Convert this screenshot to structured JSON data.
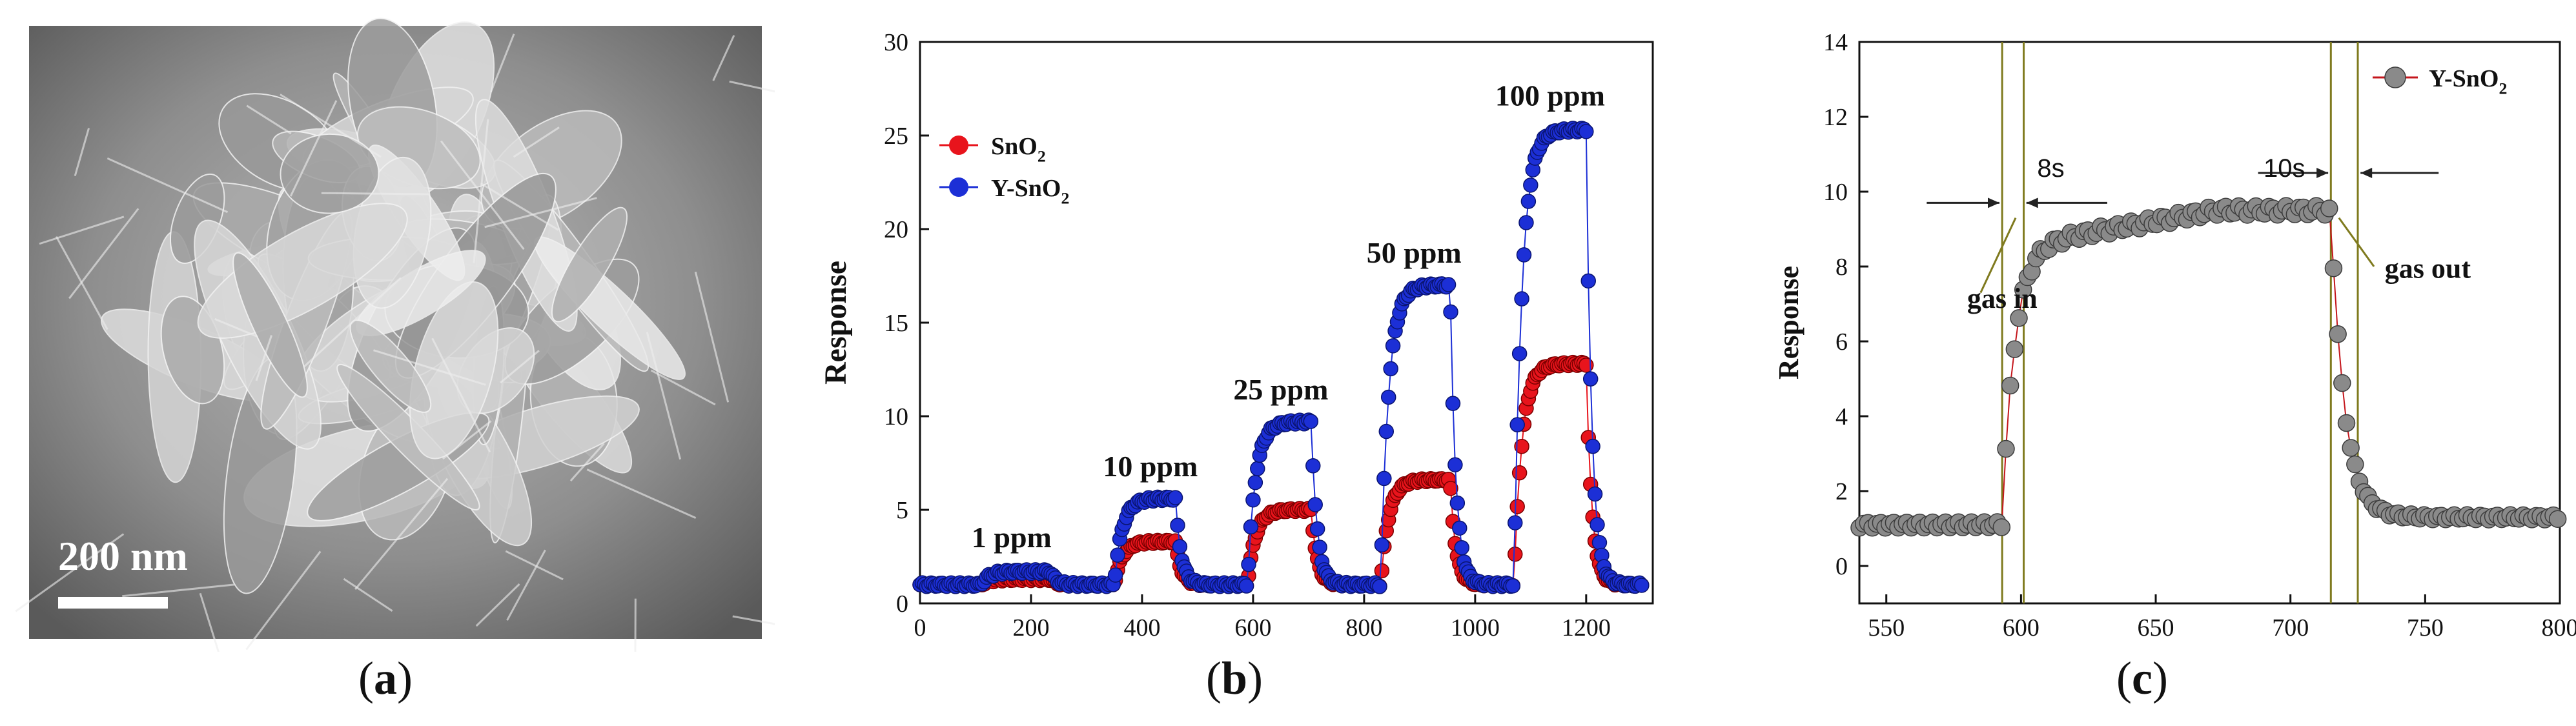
{
  "panel_a": {
    "scale_bar_label": "200 nm",
    "caption_open": "(",
    "caption_letter": "a",
    "caption_close": ")"
  },
  "panel_b": {
    "caption_open": "(",
    "caption_letter": "b",
    "caption_close": ")"
  },
  "panel_c": {
    "caption_open": "(",
    "caption_letter": "c",
    "caption_close": ")"
  },
  "colors": {
    "sno2": "#e8141c",
    "ysno2": "#1c2fd6",
    "ysno2_c": "#8a8a8a",
    "guide_line": "#7f7a1e",
    "axis": "#111111"
  },
  "chart_data": [
    {
      "id": "b",
      "type": "scatter",
      "title": "",
      "xlabel": "",
      "ylabel": "Response",
      "xlim": [
        0,
        1320
      ],
      "ylim": [
        0,
        30
      ],
      "xticks": [
        "0",
        "200",
        "400",
        "600",
        "800",
        "1000",
        "1200"
      ],
      "xtick_values": [
        0,
        200,
        400,
        600,
        800,
        1000,
        1200
      ],
      "yticks": [
        "0",
        "5",
        "10",
        "15",
        "20",
        "25",
        "30"
      ],
      "ytick_values": [
        0,
        5,
        10,
        15,
        20,
        25,
        30
      ],
      "legend": {
        "position": "top-left",
        "entries": [
          {
            "base": "SnO",
            "sub": "2"
          },
          {
            "base": "Y-SnO",
            "sub": "2"
          }
        ]
      },
      "pulse_labels": [
        {
          "text": "1 ppm",
          "x": 165,
          "y": 3.0
        },
        {
          "text": "10 ppm",
          "x": 415,
          "y": 6.8
        },
        {
          "text": "25 ppm",
          "x": 650,
          "y": 10.9
        },
        {
          "text": "50 ppm",
          "x": 890,
          "y": 18.2
        },
        {
          "text": "100 ppm",
          "x": 1135,
          "y": 26.6
        }
      ],
      "pulses": [
        {
          "start": 110,
          "end": 235,
          "sno2": 1.3,
          "ysno2": 1.7
        },
        {
          "start": 350,
          "end": 460,
          "sno2": 3.3,
          "ysno2": 5.6
        },
        {
          "start": 590,
          "end": 705,
          "sno2": 5.0,
          "ysno2": 9.7
        },
        {
          "start": 830,
          "end": 955,
          "sno2": 6.6,
          "ysno2": 17.0
        },
        {
          "start": 1070,
          "end": 1200,
          "sno2": 12.8,
          "ysno2": 25.3
        }
      ],
      "baseline": 1.0,
      "x_end": 1300,
      "series": [
        {
          "name": "SnO2",
          "label": "SnO2",
          "color": "#e8141c"
        },
        {
          "name": "Y-SnO2",
          "label": "Y-SnO2",
          "color": "#1c2fd6"
        }
      ]
    },
    {
      "id": "c",
      "type": "scatter",
      "title": "",
      "xlabel": "",
      "ylabel": "Response",
      "xlim": [
        540,
        800
      ],
      "ylim": [
        -1,
        14
      ],
      "xticks": [
        "550",
        "600",
        "650",
        "700",
        "750",
        "800"
      ],
      "xtick_values": [
        550,
        600,
        650,
        700,
        750,
        800
      ],
      "yticks": [
        "0",
        "2",
        "4",
        "6",
        "8",
        "10",
        "12",
        "14"
      ],
      "ytick_values": [
        0,
        2,
        4,
        6,
        8,
        10,
        12,
        14
      ],
      "legend": {
        "position": "top-right",
        "entries": [
          {
            "base": "Y-SnO",
            "sub": "2"
          }
        ]
      },
      "series": [
        {
          "name": "Y-SnO2",
          "color": "#8a8a8a",
          "baseline": 1.1,
          "on_start": 593,
          "rise_end": 601,
          "plateau_start": 8.5,
          "plateau_end": 9.5,
          "off_start": 715,
          "fall_end": 725,
          "recovery": 1.3
        }
      ],
      "guide_lines_x": [
        593,
        601,
        715,
        725
      ],
      "annotations": [
        {
          "text": "8s",
          "x": 606,
          "y": 10.4
        },
        {
          "text": "10s",
          "x": 690,
          "y": 10.4
        },
        {
          "text": "gas in",
          "x": 580,
          "y": 6.9
        },
        {
          "text": "gas out",
          "x": 735,
          "y": 7.7
        }
      ],
      "arrows": [
        {
          "from_x": 565,
          "to_x": 592,
          "y": 9.7
        },
        {
          "from_x": 632,
          "to_x": 602,
          "y": 9.7
        },
        {
          "from_x": 688,
          "to_x": 714,
          "y": 10.5
        },
        {
          "from_x": 755,
          "to_x": 726,
          "y": 10.5
        }
      ],
      "pointer_lines": [
        {
          "from": [
            585,
            7.3
          ],
          "to": [
            598,
            9.3
          ]
        },
        {
          "from": [
            731,
            8.0
          ],
          "to": [
            718,
            9.3
          ]
        }
      ]
    }
  ]
}
